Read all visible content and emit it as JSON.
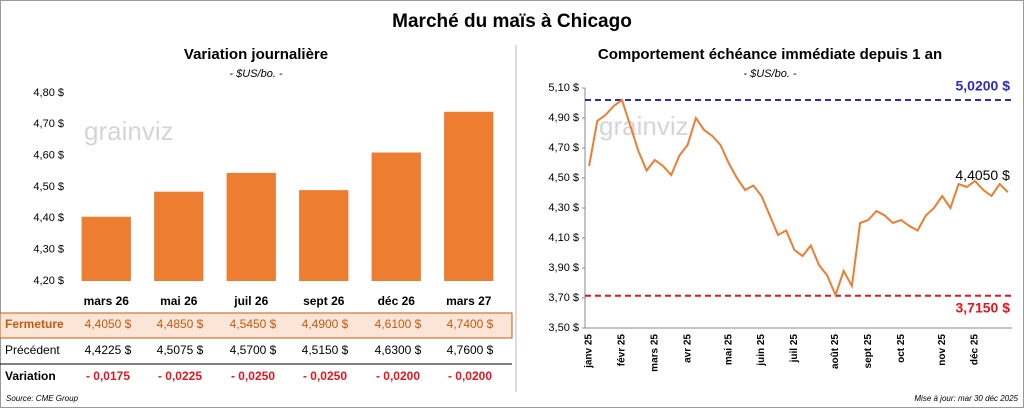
{
  "title": "Marché du maïs à Chicago",
  "source": "Source: CME Group",
  "updated": "Mise à jour: mar 30 déc 2025",
  "watermark": "grainviz",
  "chart_data": [
    {
      "type": "bar",
      "title": "Variation journalière",
      "subtitle": "- $US/bo. -",
      "categories": [
        "mars 26",
        "mai 26",
        "juil 26",
        "sept 26",
        "déc 26",
        "mars 27"
      ],
      "values": [
        4.405,
        4.485,
        4.545,
        4.49,
        4.61,
        4.74
      ],
      "color": "#ed7d31",
      "ylim": [
        4.2,
        4.8
      ],
      "yticks": [
        {
          "value": 4.2,
          "label": "4,20 $"
        },
        {
          "value": 4.3,
          "label": "4,30 $"
        },
        {
          "value": 4.4,
          "label": "4,40 $"
        },
        {
          "value": 4.5,
          "label": "4,50 $"
        },
        {
          "value": 4.6,
          "label": "4,60 $"
        },
        {
          "value": 4.7,
          "label": "4,70 $"
        },
        {
          "value": 4.8,
          "label": "4,80 $"
        }
      ],
      "grid": false
    },
    {
      "type": "line",
      "title": "Comportement échéance immédiate depuis 1 an",
      "subtitle": "- $US/bo. -",
      "categories": [
        "janv 25",
        null,
        null,
        null,
        "févr 25",
        null,
        null,
        null,
        "mars 25",
        null,
        null,
        null,
        "avr 25",
        null,
        null,
        null,
        null,
        "mai 25",
        null,
        null,
        null,
        "juin 25",
        null,
        null,
        null,
        "juil 25",
        null,
        null,
        null,
        null,
        "août 25",
        null,
        null,
        null,
        "sept 25",
        null,
        null,
        null,
        "oct 25",
        null,
        null,
        null,
        null,
        "nov 25",
        null,
        null,
        null,
        "déc 25",
        null,
        null,
        null,
        null
      ],
      "values": [
        4.58,
        4.88,
        4.92,
        4.98,
        5.02,
        4.85,
        4.68,
        4.55,
        4.62,
        4.58,
        4.52,
        4.65,
        4.72,
        4.9,
        4.82,
        4.78,
        4.72,
        4.6,
        4.5,
        4.42,
        4.45,
        4.38,
        4.25,
        4.12,
        4.15,
        4.02,
        3.98,
        4.05,
        3.92,
        3.85,
        3.72,
        3.88,
        3.78,
        4.2,
        4.22,
        4.28,
        4.25,
        4.2,
        4.22,
        4.18,
        4.15,
        4.25,
        4.3,
        4.38,
        4.3,
        4.46,
        4.44,
        4.48,
        4.42,
        4.38,
        4.46,
        4.405
      ],
      "color": "#ed7d31",
      "ylim": [
        3.5,
        5.1
      ],
      "yticks": [
        {
          "value": 3.5,
          "label": "3,50 $"
        },
        {
          "value": 3.7,
          "label": "3,70 $"
        },
        {
          "value": 3.9,
          "label": "3,90 $"
        },
        {
          "value": 4.1,
          "label": "4,10 $"
        },
        {
          "value": 4.3,
          "label": "4,30 $"
        },
        {
          "value": 4.5,
          "label": "4,50 $"
        },
        {
          "value": 4.7,
          "label": "4,70 $"
        },
        {
          "value": 4.9,
          "label": "4,90 $"
        },
        {
          "value": 5.1,
          "label": "5,10 $"
        }
      ],
      "grid": false,
      "reference_lines": [
        {
          "value": 5.02,
          "label": "5,0200 $",
          "color": "#2b2bcc"
        },
        {
          "value": 3.715,
          "label": "3,7150 $",
          "color": "#e8141b"
        }
      ],
      "end_label": "4,4050 $"
    }
  ],
  "table": {
    "rows": [
      [
        "Fermeture",
        "4,4050 $",
        "4,4850 $",
        "4,5450 $",
        "4,4900 $",
        "4,6100 $",
        "4,7400 $"
      ],
      [
        "Précédent",
        "4,4225 $",
        "4,5075 $",
        "4,5700 $",
        "4,5150 $",
        "4,6300 $",
        "4,7600 $"
      ],
      [
        "Variation",
        "- 0,0175",
        "- 0,0225",
        "- 0,0250",
        "- 0,0250",
        "- 0,0200",
        "- 0,0200"
      ]
    ]
  }
}
